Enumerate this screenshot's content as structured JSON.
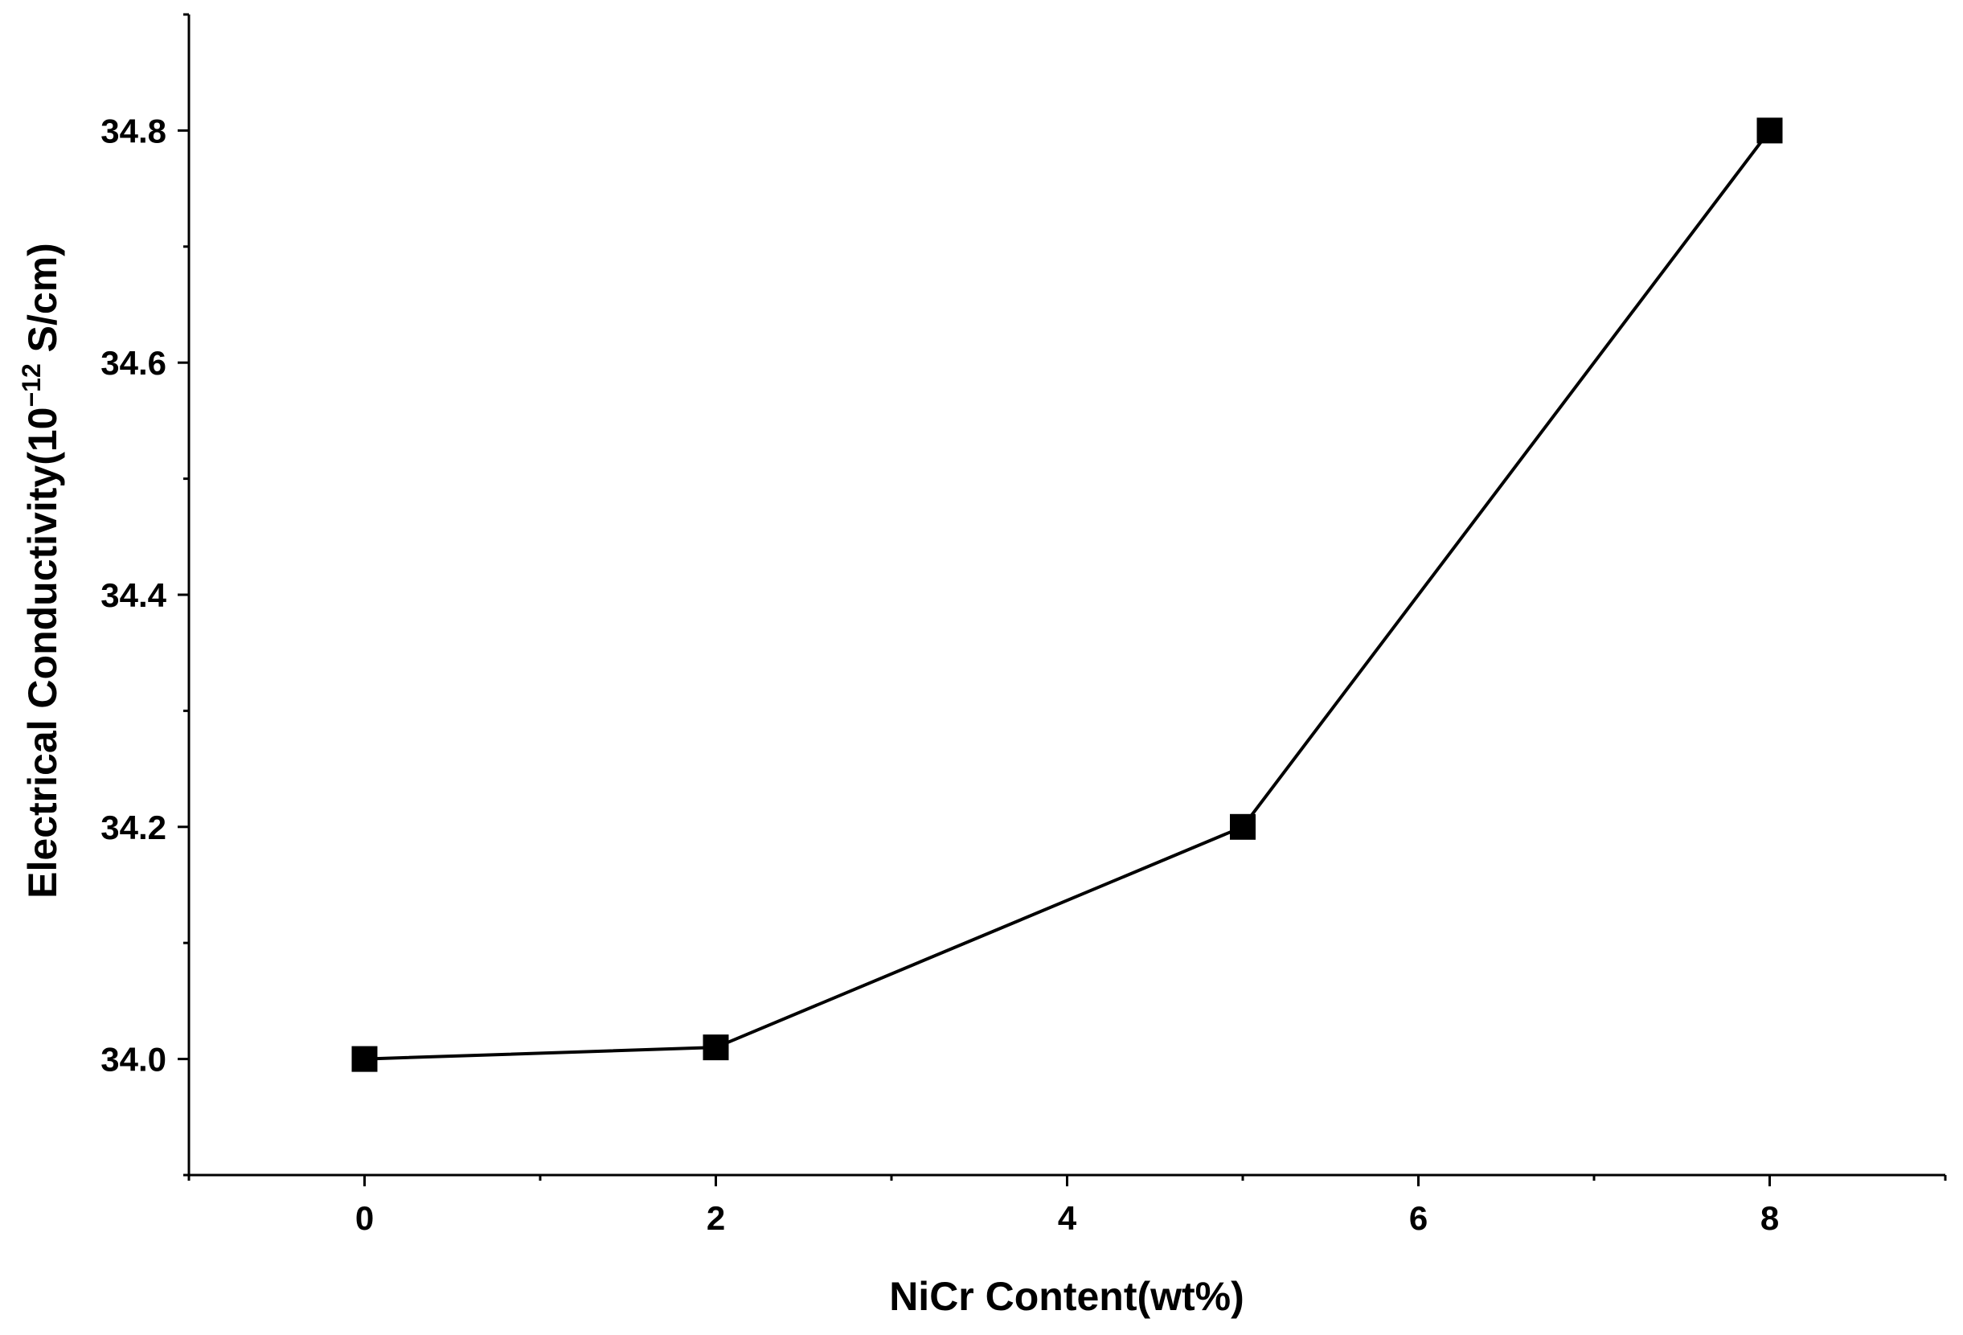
{
  "chart_data": {
    "type": "line",
    "xlabel": "NiCr Content(wt%)",
    "ylabel": {
      "prefix": "Electrical Conductivity(10",
      "exponent": "−12",
      "suffix": " S/cm)"
    },
    "x": [
      0,
      2,
      5,
      8
    ],
    "series": [
      {
        "values": [
          34.0,
          34.01,
          34.2,
          34.8
        ],
        "marker": "square",
        "color": "#000000"
      }
    ],
    "xlim": [
      -1,
      9
    ],
    "ylim": [
      33.9,
      34.9
    ],
    "xticks": [
      0,
      2,
      4,
      6,
      8
    ],
    "xtick_labels": [
      "0",
      "2",
      "4",
      "6",
      "8"
    ],
    "yticks": [
      34.0,
      34.2,
      34.4,
      34.6,
      34.8
    ],
    "ytick_labels": [
      "34.0",
      "34.2",
      "34.4",
      "34.6",
      "34.8"
    ],
    "grid": false,
    "legend": false
  }
}
